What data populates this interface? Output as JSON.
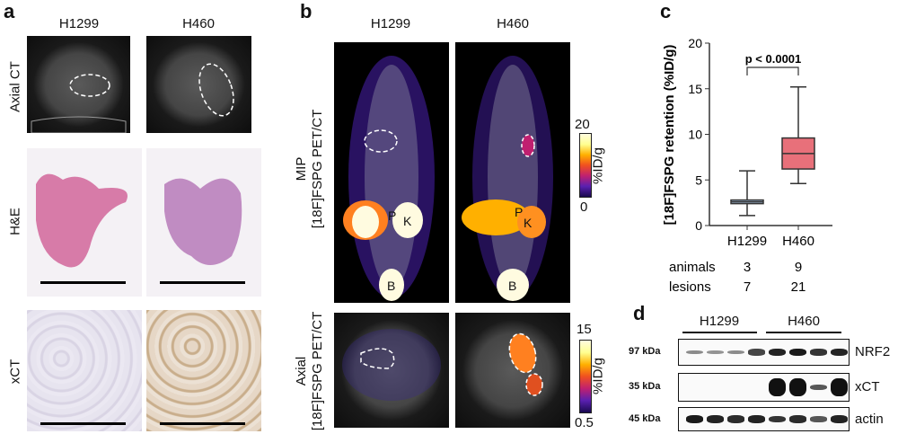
{
  "panels": {
    "a": {
      "label": "a",
      "columns": [
        "H1299",
        "H460"
      ],
      "rows": [
        "Axial CT",
        "H&E",
        "xCT"
      ]
    },
    "b": {
      "label": "b",
      "columns": [
        "H1299",
        "H460"
      ],
      "rows": [
        {
          "line1": "MIP",
          "line2": "[18F]FSPG PET/CT"
        },
        {
          "line1": "Axial",
          "line2": "[18F]FSPG PET/CT"
        }
      ],
      "organ_labels": {
        "P": "P",
        "K": "K",
        "B": "B"
      },
      "colorbars": [
        {
          "max": "20",
          "min": "0",
          "unit": "%ID/g"
        },
        {
          "max": "15",
          "min": "0.5",
          "unit": "%ID/g"
        }
      ]
    },
    "c": {
      "label": "c"
    },
    "d": {
      "label": "d",
      "groups": [
        "H1299",
        "H460"
      ],
      "blots": [
        {
          "kda": "97 kDa",
          "protein": "NRF2",
          "intensities": [
            0.3,
            0.25,
            0.3,
            0.7,
            0.9,
            0.95,
            0.8,
            0.9
          ]
        },
        {
          "kda": "35 kDa",
          "protein": "xCT",
          "intensities": [
            0,
            0,
            0,
            0,
            1,
            1,
            0.6,
            1
          ]
        },
        {
          "kda": "45 kDa",
          "protein": "actin",
          "intensities": [
            0.95,
            0.9,
            0.85,
            0.9,
            0.8,
            0.85,
            0.6,
            0.9
          ]
        }
      ]
    }
  },
  "chart_data": {
    "type": "box",
    "categories": [
      "H1299",
      "H460"
    ],
    "ylabel": "[18F]FSPG retention (%ID/g)",
    "ylim": [
      0,
      20
    ],
    "yticks": [
      "0",
      "5",
      "10",
      "15",
      "20"
    ],
    "boxes": [
      {
        "name": "H1299",
        "min": 1.1,
        "q1": 2.4,
        "median": 2.6,
        "q3": 2.8,
        "max": 6.0,
        "color": "#a9c4e4"
      },
      {
        "name": "H460",
        "min": 4.6,
        "q1": 6.2,
        "median": 7.9,
        "q3": 9.6,
        "max": 15.2,
        "color": "#e8707a"
      }
    ],
    "annotation": "p < 0.0001",
    "table": {
      "rows": [
        {
          "label": "animals",
          "values": [
            "3",
            "9"
          ]
        },
        {
          "label": "lesions",
          "values": [
            "7",
            "21"
          ]
        }
      ]
    }
  }
}
